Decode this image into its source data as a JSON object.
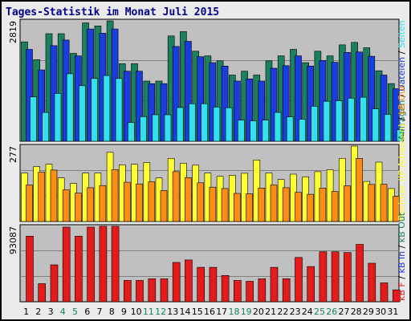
{
  "title": "Tages-Statistik im Monat Juli 2015",
  "colors": {
    "anfragen": "#1a8060",
    "dateien": "#1a3de0",
    "seiten": "#33e0ee",
    "rechner": "#ffff33",
    "kb_out": "#ff8c14",
    "kb_in": "#e31b1b",
    "plot_bg": "#c0c0c0",
    "outer_bg": "#ebebeb"
  },
  "chart_data": [
    {
      "type": "bar",
      "scale_max_label": "2819",
      "categories": [
        "1",
        "2",
        "3",
        "4",
        "5",
        "6",
        "7",
        "8",
        "9",
        "10",
        "11",
        "12",
        "13",
        "14",
        "15",
        "16",
        "17",
        "18",
        "19",
        "20",
        "21",
        "22",
        "23",
        "24",
        "25",
        "26",
        "27",
        "28",
        "29",
        "30",
        "31"
      ],
      "weekend_days": [
        "4",
        "5",
        "11",
        "12",
        "18",
        "19",
        "25",
        "26"
      ],
      "legend": [
        {
          "text": "Anfragen",
          "color_key": "anfragen"
        },
        {
          "text": "Dateien",
          "color_key": "dateien"
        },
        {
          "text": "Seiten",
          "color_key": "seiten"
        }
      ],
      "series": [
        {
          "name": "Anfragen",
          "color_key": "anfragen",
          "values": [
            2326,
            1910,
            2518,
            2518,
            2058,
            2772,
            2700,
            2819,
            1815,
            1815,
            1410,
            1410,
            2466,
            2567,
            2109,
            2000,
            1883,
            1550,
            1640,
            1550,
            1883,
            2000,
            2152,
            1840,
            2109,
            2000,
            2257,
            2315,
            2190,
            1650,
            1350
          ]
        },
        {
          "name": "Dateien",
          "color_key": "dateien",
          "values": [
            2152,
            1670,
            2239,
            2370,
            2000,
            2630,
            2530,
            2630,
            1640,
            1640,
            1350,
            1350,
            2220,
            2340,
            1980,
            1840,
            1760,
            1410,
            1460,
            1410,
            1710,
            1770,
            2000,
            1760,
            1890,
            1850,
            2080,
            2090,
            1990,
            1550,
            1230
          ]
        },
        {
          "name": "Seiten",
          "color_key": "seiten",
          "values": [
            1040,
            675,
            1120,
            1580,
            1300,
            1470,
            1540,
            1470,
            440,
            575,
            620,
            620,
            790,
            880,
            880,
            800,
            785,
            495,
            480,
            495,
            675,
            570,
            515,
            820,
            935,
            950,
            1010,
            1030,
            760,
            630,
            270
          ]
        }
      ]
    },
    {
      "type": "bar",
      "scale_max_label": "277",
      "categories": [
        "1",
        "2",
        "3",
        "4",
        "5",
        "6",
        "7",
        "8",
        "9",
        "10",
        "11",
        "12",
        "13",
        "14",
        "15",
        "16",
        "17",
        "18",
        "19",
        "20",
        "21",
        "22",
        "23",
        "24",
        "25",
        "26",
        "27",
        "28",
        "29",
        "30",
        "31"
      ],
      "legend": [
        {
          "text": "Rechner (IP-Adressen)",
          "color_key": "rechner"
        },
        {
          "text": "kB Out",
          "color_key": "kb_out"
        }
      ],
      "series": [
        {
          "name": "Rechner (IP-Adressen)",
          "color_key": "rechner",
          "values": [
            178,
            202,
            210,
            160,
            140,
            178,
            178,
            254,
            208,
            210,
            217,
            160,
            232,
            214,
            207,
            178,
            166,
            170,
            177,
            226,
            178,
            154,
            174,
            164,
            183,
            190,
            232,
            277,
            147,
            218,
            121
          ]
        },
        {
          "name": "kB Out",
          "color_key": "kb_out",
          "values": [
            134,
            181,
            189,
            116,
            104,
            124,
            132,
            190,
            144,
            138,
            146,
            114,
            183,
            161,
            142,
            126,
            121,
            103,
            102,
            123,
            134,
            124,
            107,
            100,
            123,
            110,
            131,
            232,
            136,
            137,
            92
          ]
        }
      ]
    },
    {
      "type": "bar",
      "scale_max_label": "93087",
      "categories": [
        "1",
        "2",
        "3",
        "4",
        "5",
        "6",
        "7",
        "8",
        "9",
        "10",
        "11",
        "12",
        "13",
        "14",
        "15",
        "16",
        "17",
        "18",
        "19",
        "20",
        "21",
        "22",
        "23",
        "24",
        "25",
        "26",
        "27",
        "28",
        "29",
        "30",
        "31"
      ],
      "legend": [
        {
          "text": "kB F",
          "color_key": "kb_in"
        },
        {
          "text": "kB In",
          "color_key": "dateien"
        },
        {
          "text": "kB Out",
          "color_key": "anfragen"
        }
      ],
      "series": [
        {
          "name": "kB F",
          "color_key": "kb_in",
          "values": [
            80000,
            22000,
            45000,
            91000,
            80000,
            91000,
            92000,
            92000,
            26000,
            26000,
            28000,
            28000,
            48000,
            51000,
            42000,
            42000,
            32000,
            26000,
            25000,
            28000,
            42000,
            28000,
            54000,
            43000,
            61000,
            61000,
            60000,
            70000,
            47000,
            23000,
            14500
          ]
        }
      ]
    }
  ]
}
